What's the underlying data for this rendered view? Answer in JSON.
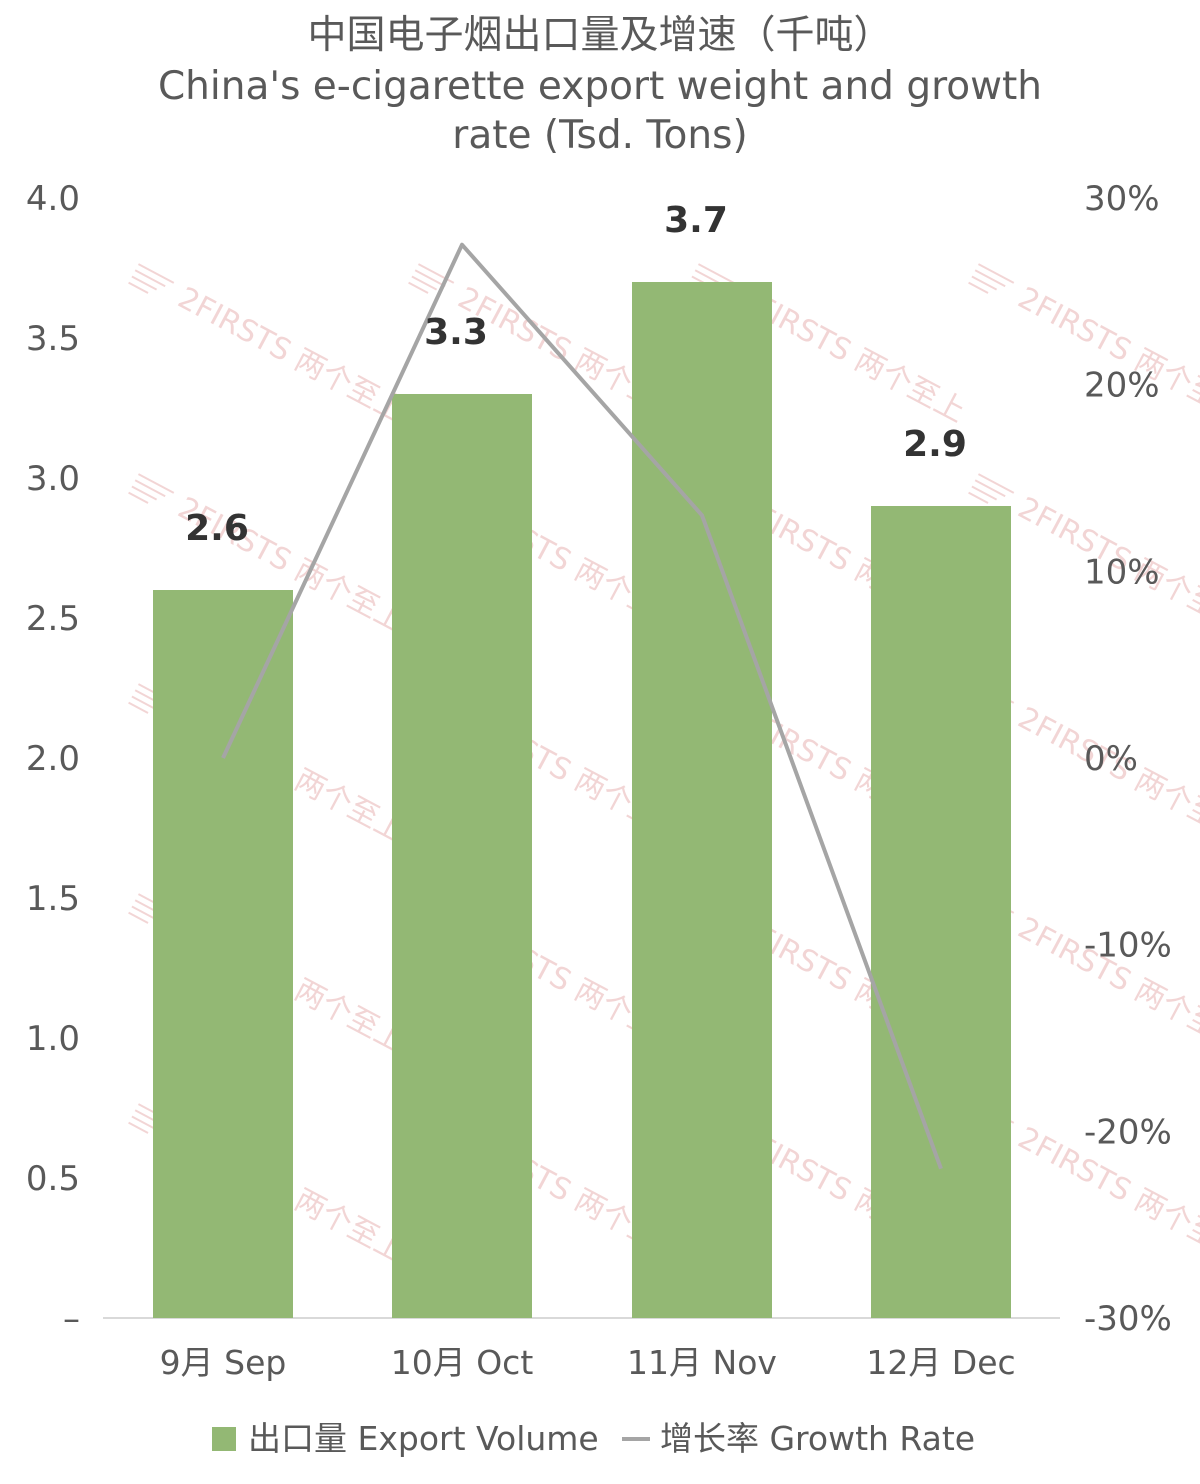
{
  "chart_data": {
    "type": "bar",
    "title_zh": "中国电子烟出口量及增速（千吨）",
    "title_en_line1": "China's e-cigarette export weight and growth",
    "title_en_line2": "rate (Tsd. Tons)",
    "categories": [
      "9月 Sep",
      "10月 Oct",
      "11月 Nov",
      "12月 Dec"
    ],
    "series": [
      {
        "name": "出口量 Export Volume",
        "type": "bar",
        "axis": "left",
        "values": [
          2.6,
          3.3,
          3.7,
          2.9
        ],
        "data_labels": [
          "2.6",
          "3.3",
          "3.7",
          "2.9"
        ],
        "color": "#93b874"
      },
      {
        "name": "增长率 Growth Rate",
        "type": "line",
        "axis": "right",
        "values": [
          0.0,
          0.275,
          0.13,
          -0.22
        ],
        "color": "#a5a5a5"
      }
    ],
    "y_left": {
      "ylim": [
        0,
        4.0
      ],
      "tick_labels": [
        "–",
        "0.5",
        "1.0",
        "1.5",
        "2.0",
        "2.5",
        "3.0",
        "3.5",
        "4.0"
      ]
    },
    "y_right": {
      "ylim": [
        -0.3,
        0.3
      ],
      "tick_labels": [
        "-30%",
        "-20%",
        "-10%",
        "0%",
        "10%",
        "20%",
        "30%"
      ]
    },
    "grid": false,
    "legend_position": "bottom",
    "watermark": "2FIRSTS 两个至上"
  }
}
